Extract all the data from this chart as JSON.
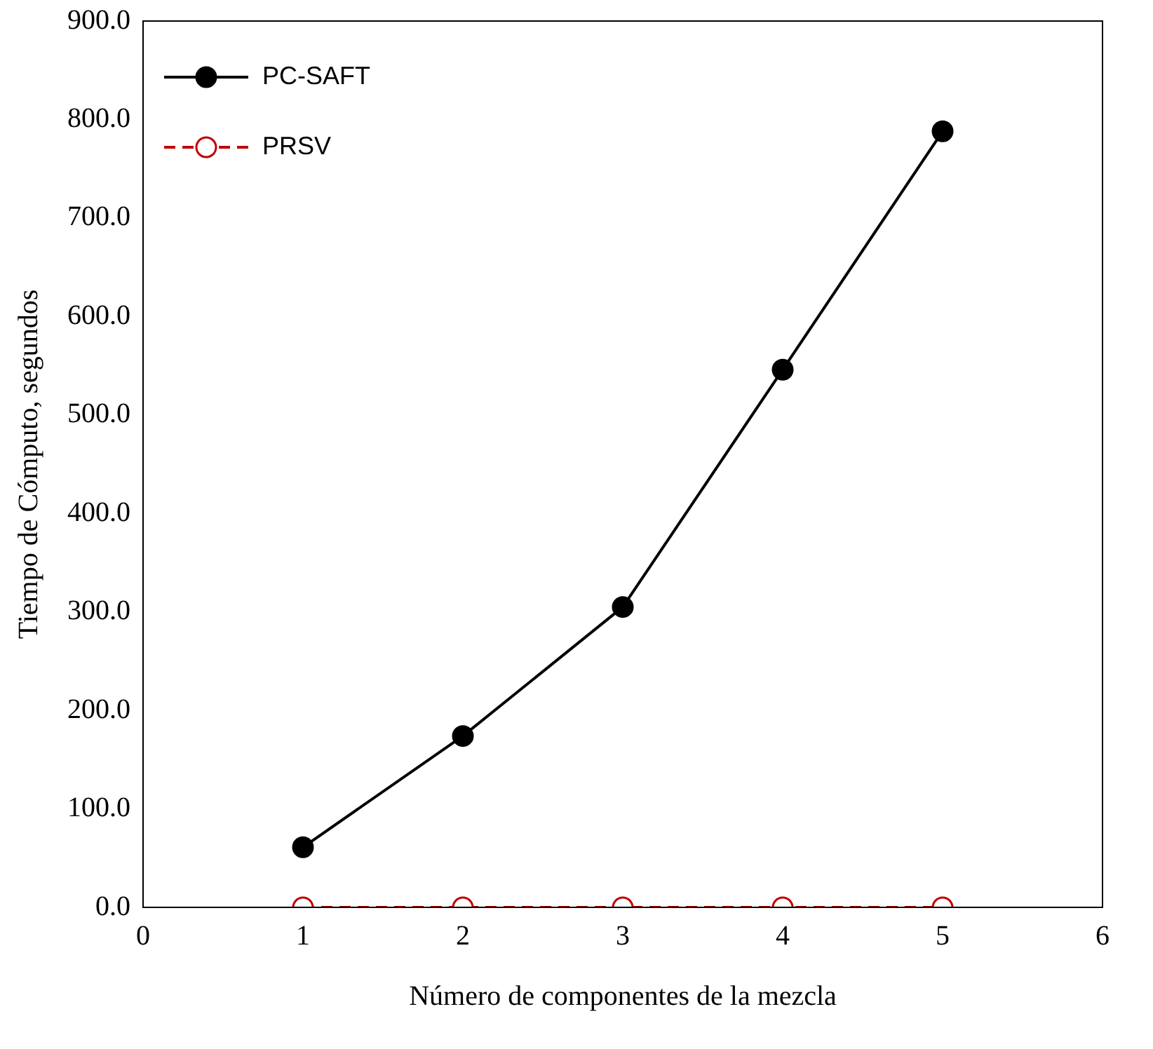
{
  "chart_data": {
    "type": "line",
    "xlabel": "Número de componentes de la mezcla",
    "ylabel": "Tiempo de Cómputo, segundos",
    "x": [
      1,
      2,
      3,
      4,
      5
    ],
    "series": [
      {
        "name": "PC-SAFT",
        "color": "#000000",
        "values": [
          61,
          174,
          305,
          546,
          788
        ],
        "marker": "circle",
        "line_style": "solid"
      },
      {
        "name": "PRSV",
        "color": "#c00000",
        "values": [
          0,
          0,
          0,
          0,
          0
        ],
        "marker": "circle",
        "line_style": "dashed"
      }
    ],
    "xlim": [
      0,
      6
    ],
    "xticks": [
      0,
      1,
      2,
      3,
      4,
      5,
      6
    ],
    "ylim": [
      0,
      900
    ],
    "yticks": [
      {
        "value": 0,
        "label": "0.0"
      },
      {
        "value": 100,
        "label": "100.0"
      },
      {
        "value": 200,
        "label": "200.0"
      },
      {
        "value": 300,
        "label": "300.0"
      },
      {
        "value": 400,
        "label": "400.0"
      },
      {
        "value": 500,
        "label": "500.0"
      },
      {
        "value": 600,
        "label": "600.0"
      },
      {
        "value": 700,
        "label": "700.0"
      },
      {
        "value": 800,
        "label": "800.0"
      },
      {
        "value": 900,
        "label": "900.0"
      }
    ],
    "grid": false,
    "legend": "top left"
  }
}
